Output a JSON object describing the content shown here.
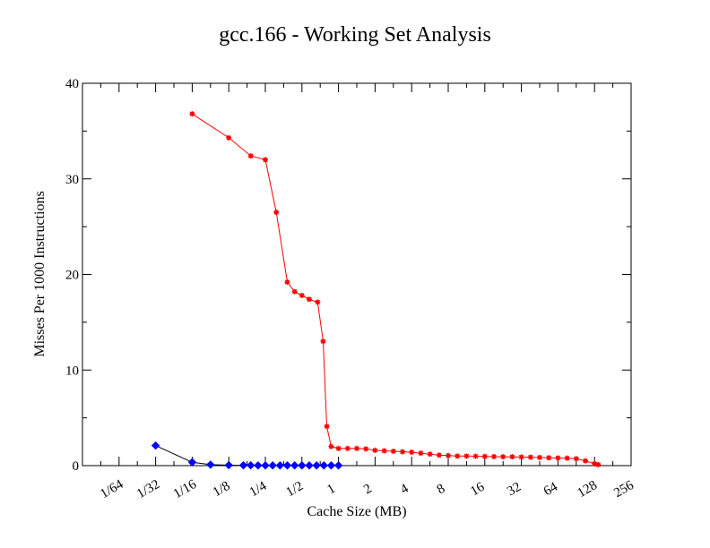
{
  "chart_data": {
    "type": "line",
    "title": "gcc.166 - Working Set Analysis",
    "xlabel": "Cache Size (MB)",
    "ylabel": "Misses Per 1000 Instructions",
    "x_scale": "log2",
    "xlim_log2": [
      -7,
      8
    ],
    "ylim": [
      0,
      40
    ],
    "grid": false,
    "legend": "none",
    "x_ticks": [
      {
        "log2": -6,
        "label": "1/64"
      },
      {
        "log2": -5,
        "label": "1/32"
      },
      {
        "log2": -4,
        "label": "1/16"
      },
      {
        "log2": -3,
        "label": "1/8"
      },
      {
        "log2": -2,
        "label": "1/4"
      },
      {
        "log2": -1,
        "label": "1/2"
      },
      {
        "log2": 0,
        "label": "1"
      },
      {
        "log2": 1,
        "label": "2"
      },
      {
        "log2": 2,
        "label": "4"
      },
      {
        "log2": 3,
        "label": "8"
      },
      {
        "log2": 4,
        "label": "16"
      },
      {
        "log2": 5,
        "label": "32"
      },
      {
        "log2": 6,
        "label": "64"
      },
      {
        "log2": 7,
        "label": "128"
      },
      {
        "log2": 8,
        "label": "256"
      }
    ],
    "y_ticks": [
      0,
      10,
      20,
      30,
      40
    ],
    "series": [
      {
        "color": "#ff0000",
        "marker": "star",
        "points": [
          [
            -4.0,
            36.8
          ],
          [
            -3.0,
            34.3
          ],
          [
            -2.4,
            32.4
          ],
          [
            -2.0,
            32.0
          ],
          [
            -1.7,
            26.5
          ],
          [
            -1.4,
            19.2
          ],
          [
            -1.2,
            18.2
          ],
          [
            -1.0,
            17.8
          ],
          [
            -0.8,
            17.4
          ],
          [
            -0.57,
            17.1
          ],
          [
            -0.42,
            13.0
          ],
          [
            -0.32,
            4.1
          ],
          [
            -0.2,
            2.0
          ],
          [
            0.0,
            1.8
          ],
          [
            0.25,
            1.8
          ],
          [
            0.5,
            1.8
          ],
          [
            0.75,
            1.75
          ],
          [
            1.0,
            1.6
          ],
          [
            1.25,
            1.55
          ],
          [
            1.5,
            1.5
          ],
          [
            1.75,
            1.45
          ],
          [
            2.0,
            1.4
          ],
          [
            2.25,
            1.3
          ],
          [
            2.5,
            1.2
          ],
          [
            2.75,
            1.1
          ],
          [
            3.0,
            1.05
          ],
          [
            3.25,
            1.0
          ],
          [
            3.5,
            1.0
          ],
          [
            3.75,
            0.98
          ],
          [
            4.0,
            0.96
          ],
          [
            4.25,
            0.94
          ],
          [
            4.5,
            0.93
          ],
          [
            4.75,
            0.92
          ],
          [
            5.0,
            0.9
          ],
          [
            5.25,
            0.88
          ],
          [
            5.5,
            0.85
          ],
          [
            5.75,
            0.82
          ],
          [
            6.0,
            0.8
          ],
          [
            6.25,
            0.78
          ],
          [
            6.5,
            0.72
          ],
          [
            6.75,
            0.5
          ],
          [
            7.0,
            0.2
          ],
          [
            7.1,
            0.1
          ]
        ]
      },
      {
        "color": "#0000ff",
        "line_color": "#000000",
        "marker": "diamond",
        "points": [
          [
            -5.0,
            2.1
          ],
          [
            -4.0,
            0.35
          ],
          [
            -3.5,
            0.1
          ],
          [
            -3.0,
            0.05
          ],
          [
            -2.6,
            0.03
          ],
          [
            -2.4,
            0.03
          ],
          [
            -2.2,
            0.02
          ],
          [
            -2.0,
            0.02
          ],
          [
            -1.8,
            0.02
          ],
          [
            -1.6,
            0.02
          ],
          [
            -1.4,
            0.02
          ],
          [
            -1.2,
            0.02
          ],
          [
            -1.0,
            0.02
          ],
          [
            -0.8,
            0.02
          ],
          [
            -0.6,
            0.02
          ],
          [
            -0.4,
            0.02
          ],
          [
            -0.2,
            0.02
          ],
          [
            0.0,
            0.02
          ]
        ]
      }
    ]
  }
}
